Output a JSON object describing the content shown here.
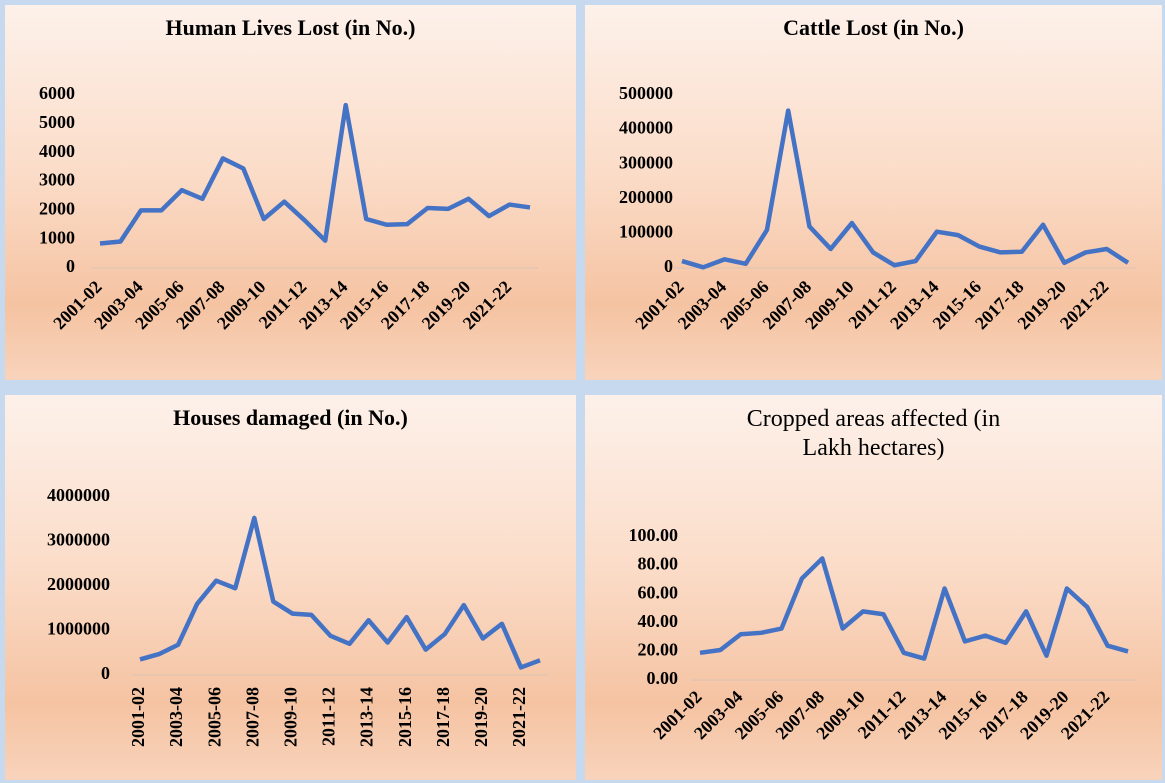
{
  "chart_data": [
    {
      "type": "line",
      "title": "Human Lives Lost (in No.)",
      "categories": [
        "2001-02",
        null,
        "2003-04",
        null,
        "2005-06",
        null,
        "2007-08",
        null,
        "2009-10",
        null,
        "2011-12",
        null,
        "2013-14",
        null,
        "2015-16",
        null,
        "2017-18",
        null,
        "2019-20",
        null,
        "2021-22",
        null
      ],
      "series": [
        {
          "name": null,
          "color": "#4472c4",
          "values": [
            850,
            920,
            2000,
            2000,
            2700,
            2400,
            3800,
            3450,
            1700,
            2300,
            1650,
            950,
            5650,
            1700,
            1500,
            1520,
            2080,
            2050,
            2400,
            1800,
            2200,
            2100
          ]
        }
      ],
      "ylim": [
        0,
        6000
      ],
      "yticks": [
        0,
        1000,
        2000,
        3000,
        4000,
        5000,
        6000
      ]
    },
    {
      "type": "line",
      "title": "Cattle Lost (in No.)",
      "categories": [
        "2001-02",
        null,
        "2003-04",
        null,
        "2005-06",
        null,
        "2007-08",
        null,
        "2009-10",
        null,
        "2011-12",
        null,
        "2013-14",
        null,
        "2015-16",
        null,
        "2017-18",
        null,
        "2019-20",
        null,
        "2021-22",
        null
      ],
      "series": [
        {
          "name": null,
          "color": "#4472c4",
          "values": [
            20000,
            2000,
            25000,
            12000,
            110000,
            455000,
            120000,
            55000,
            130000,
            45000,
            8000,
            20000,
            105000,
            95000,
            62000,
            45000,
            47000,
            125000,
            15000,
            45000,
            55000,
            15000
          ]
        }
      ],
      "ylim": [
        0,
        500000
      ],
      "yticks": [
        0,
        100000,
        200000,
        300000,
        400000,
        500000
      ]
    },
    {
      "type": "line",
      "title": "Houses damaged (in No.)",
      "categories": [
        "2001-02",
        null,
        "2003-04",
        null,
        "2005-06",
        null,
        "2007-08",
        null,
        "2009-10",
        null,
        "2011-12",
        null,
        "2013-14",
        null,
        "2015-16",
        null,
        "2017-18",
        null,
        "2019-20",
        null,
        "2021-22",
        null
      ],
      "series": [
        {
          "name": null,
          "color": "#4472c4",
          "values": [
            350000,
            470000,
            680000,
            1600000,
            2120000,
            1950000,
            3530000,
            1650000,
            1380000,
            1350000,
            880000,
            700000,
            1230000,
            730000,
            1300000,
            570000,
            920000,
            1570000,
            820000,
            1150000,
            170000,
            330000
          ]
        }
      ],
      "ylim": [
        0,
        4000000
      ],
      "yticks": [
        0,
        1000000,
        2000000,
        3000000,
        4000000
      ]
    },
    {
      "type": "line",
      "title": "Cropped areas affected (in Lakh hectares)",
      "categories": [
        "2001-02",
        null,
        "2003-04",
        null,
        "2005-06",
        null,
        "2007-08",
        null,
        "2009-10",
        null,
        "2011-12",
        null,
        "2013-14",
        null,
        "2015-16",
        null,
        "2017-18",
        null,
        "2019-20",
        null,
        "2021-22",
        null
      ],
      "series": [
        {
          "name": null,
          "color": "#4472c4",
          "values": [
            19,
            21,
            32,
            33,
            36,
            71,
            85,
            36,
            48,
            46,
            19,
            15,
            64,
            27,
            31,
            26,
            48,
            17,
            64,
            51,
            24,
            20
          ]
        }
      ],
      "ylim": [
        0,
        100
      ],
      "yticks": [
        {
          "value": 0,
          "label": "0.00"
        },
        {
          "value": 20,
          "label": "20.00"
        },
        {
          "value": 40,
          "label": "40.00"
        },
        {
          "value": 60,
          "label": "60.00"
        },
        {
          "value": 80,
          "label": "80.00"
        },
        {
          "value": 100,
          "label": "100.00"
        }
      ]
    }
  ]
}
